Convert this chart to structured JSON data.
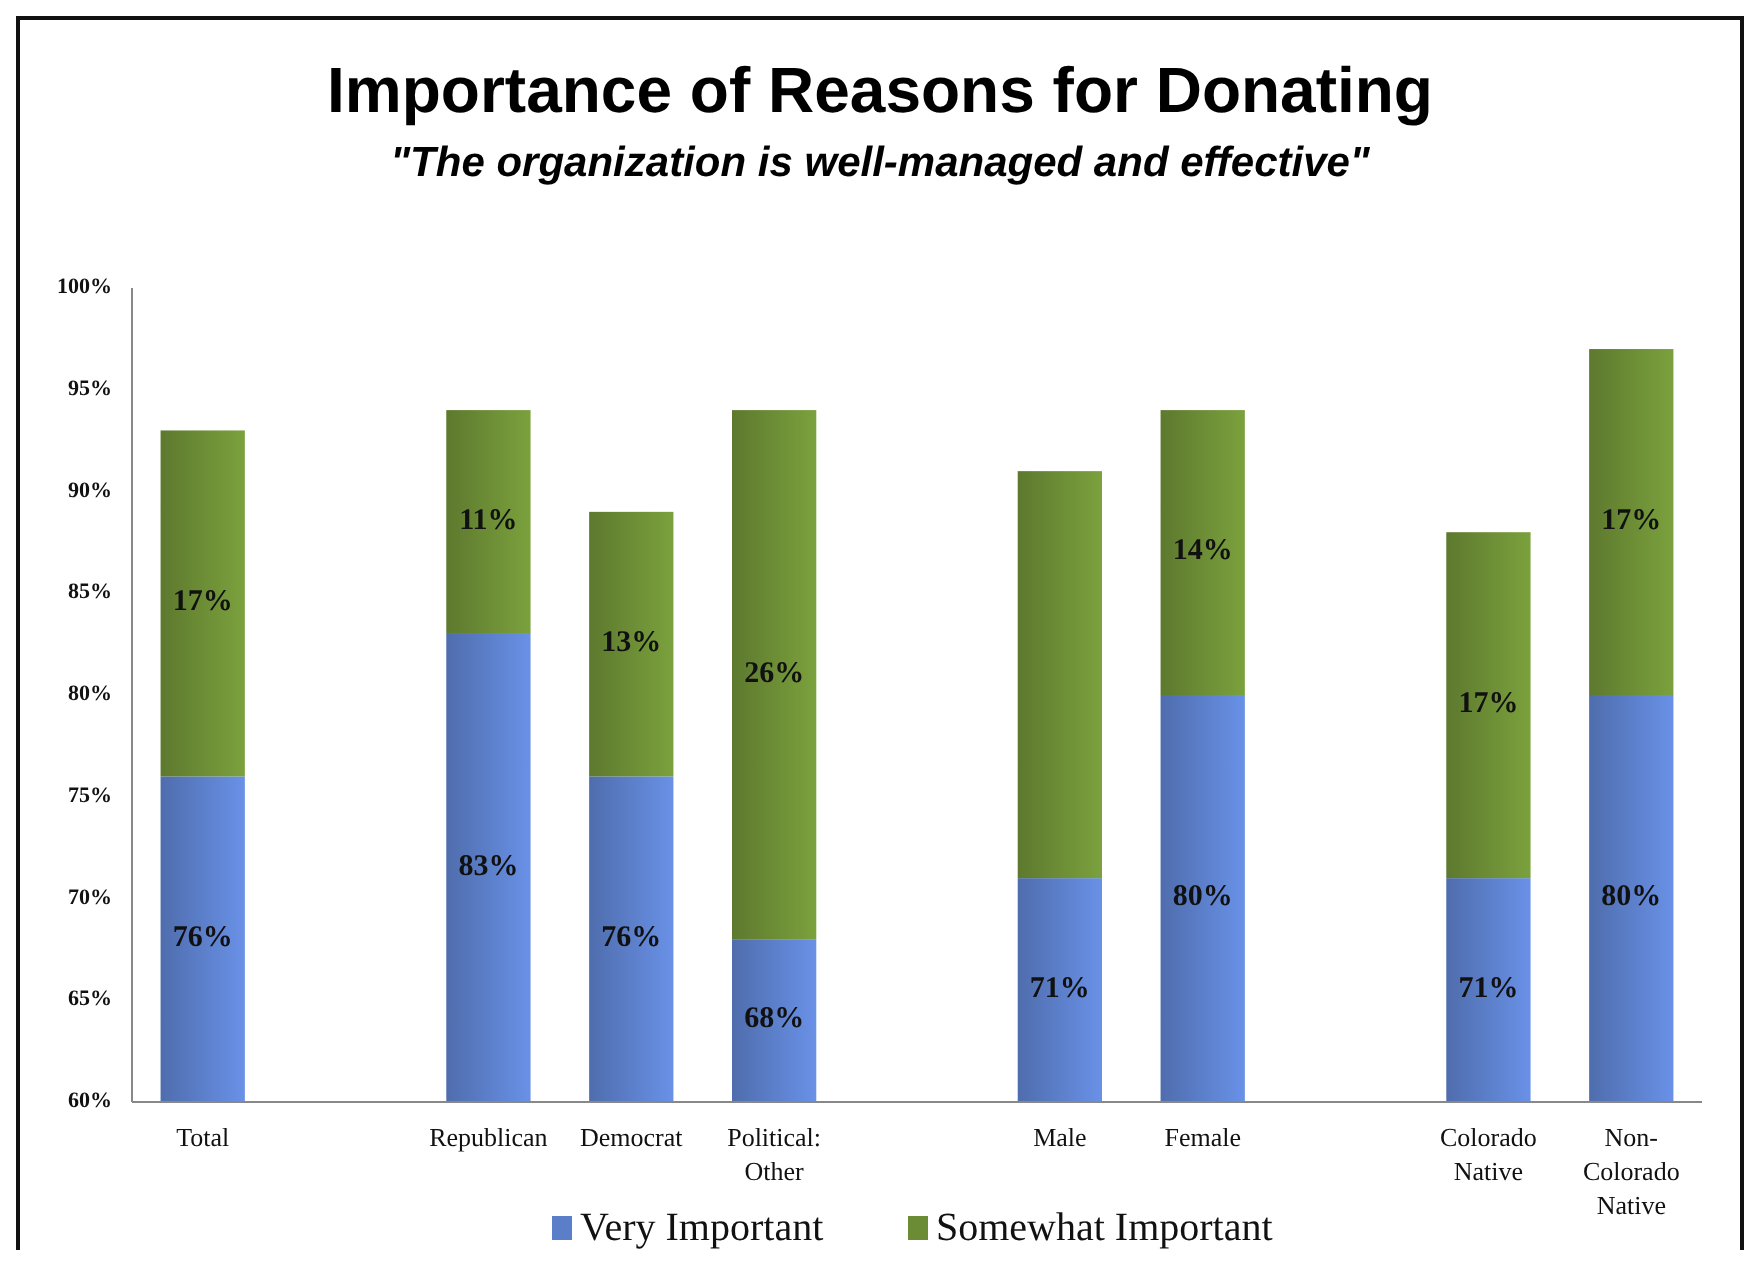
{
  "chart_data": {
    "type": "bar",
    "title": "Importance of Reasons for Donating",
    "subtitle": "\"The organization is well-managed and effective\"",
    "categories": [
      "Total",
      null,
      "Republican",
      "Democrat",
      "Political: Other",
      null,
      "Male",
      "Female",
      null,
      "Colorado Native",
      "Non-Colorado Native"
    ],
    "stacked": true,
    "series": [
      {
        "name": "Very Important",
        "color": "#5b7ec8",
        "values": [
          76,
          null,
          83,
          76,
          68,
          null,
          71,
          80,
          null,
          71,
          80
        ],
        "value_labels": [
          "76%",
          null,
          "83%",
          "76%",
          "68%",
          null,
          "71%",
          "80%",
          null,
          "71%",
          "80%"
        ]
      },
      {
        "name": "Somewhat Important",
        "color": "#6b8c35",
        "base": [
          76,
          null,
          83,
          76,
          68,
          null,
          71,
          80,
          null,
          71,
          80
        ],
        "values": [
          17,
          null,
          11,
          13,
          26,
          null,
          20,
          14,
          null,
          17,
          17
        ],
        "value_labels": [
          "17%",
          null,
          "11%",
          "13%",
          "26%",
          null,
          null,
          "14%",
          null,
          "17%",
          "17%"
        ]
      }
    ],
    "ylim": [
      60,
      100
    ],
    "yticks": [
      {
        "value": 60,
        "label": "60%"
      },
      {
        "value": 65,
        "label": "65%"
      },
      {
        "value": 70,
        "label": "70%"
      },
      {
        "value": 75,
        "label": "75%"
      },
      {
        "value": 80,
        "label": "80%"
      },
      {
        "value": 85,
        "label": "85%"
      },
      {
        "value": 90,
        "label": "90%"
      },
      {
        "value": 95,
        "label": "95%"
      },
      {
        "value": 100,
        "label": "100%"
      }
    ],
    "grid": false,
    "legend": "bottom"
  }
}
